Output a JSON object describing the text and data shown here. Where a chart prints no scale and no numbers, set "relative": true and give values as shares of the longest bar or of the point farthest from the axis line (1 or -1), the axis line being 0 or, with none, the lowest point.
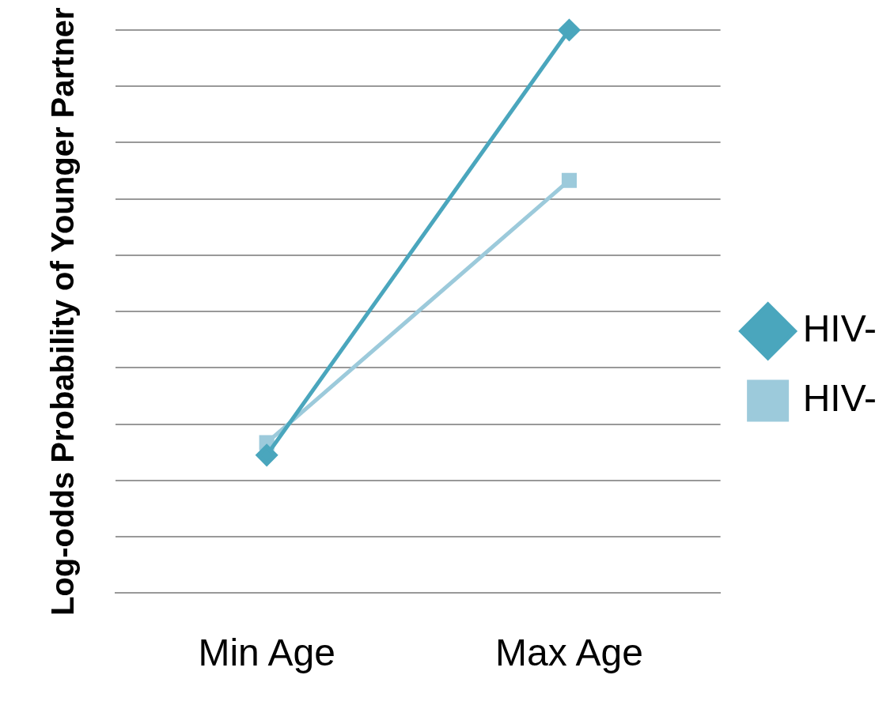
{
  "chart_data": {
    "type": "line",
    "ylabel": "Log-odds Probability of Younger Partner",
    "categories": [
      "Min Age",
      "Max Age"
    ],
    "relative": true,
    "grid": "y",
    "legend": "right",
    "series": [
      {
        "name": "HIV-",
        "color": "#4aa6bd",
        "values": [
          0.245,
          1
        ],
        "marker": "diamond"
      },
      {
        "name": "HIV-",
        "color": "#9ccadb",
        "values": [
          0.267,
          0.733
        ],
        "marker": "square"
      }
    ]
  }
}
